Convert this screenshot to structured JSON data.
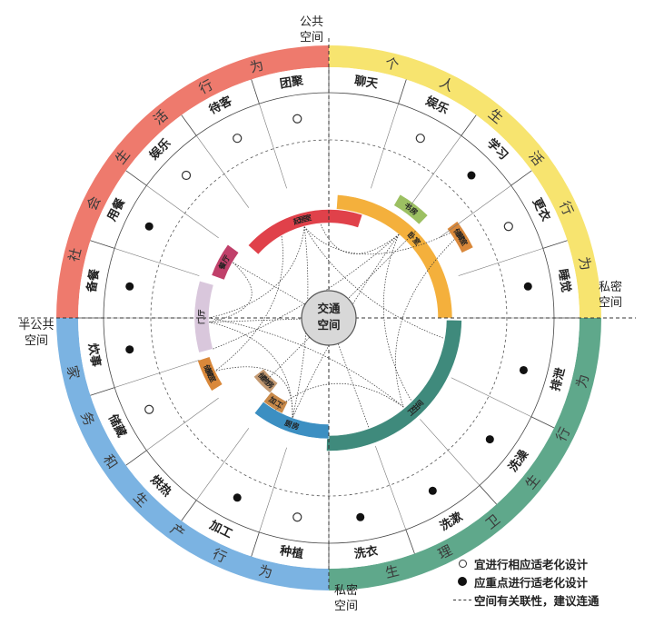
{
  "center_label": "交通空间",
  "axis_labels": {
    "top": "公共空间",
    "right": "私密空间",
    "bottom": "私密空间",
    "left": "半公共空间"
  },
  "categories": [
    {
      "id": "social",
      "label": "社会生活行为",
      "color": "#ee7a6d"
    },
    {
      "id": "personal",
      "label": "个人生活行为",
      "color": "#f7e46f"
    },
    {
      "id": "hygiene",
      "label": "生理卫生行为",
      "color": "#5fa88b"
    },
    {
      "id": "housework",
      "label": "家务和生产行为",
      "color": "#7bb3e2"
    }
  ],
  "activities": [
    {
      "label": "团聚",
      "marker": "open"
    },
    {
      "label": "待客",
      "marker": "open"
    },
    {
      "label": "娱乐",
      "marker": "open"
    },
    {
      "label": "用餐",
      "marker": "filled"
    },
    {
      "label": "备餐",
      "marker": "filled"
    },
    {
      "label": "聊天",
      "marker": "none"
    },
    {
      "label": "娱乐",
      "marker": "open"
    },
    {
      "label": "学习",
      "marker": "filled"
    },
    {
      "label": "更衣",
      "marker": "open"
    },
    {
      "label": "睡觉",
      "marker": "filled"
    },
    {
      "label": "炊事",
      "marker": "filled"
    },
    {
      "label": "储藏",
      "marker": "open"
    },
    {
      "label": "烘热",
      "marker": "none"
    },
    {
      "label": "加工",
      "marker": "filled"
    },
    {
      "label": "种植",
      "marker": "open"
    },
    {
      "label": "洗衣",
      "marker": "filled"
    },
    {
      "label": "洗漱",
      "marker": "filled"
    },
    {
      "label": "洗澡",
      "marker": "filled"
    },
    {
      "label": "排泄",
      "marker": "filled"
    }
  ],
  "rooms": [
    {
      "label": "起居室",
      "color": "#e0414a"
    },
    {
      "label": "卧室",
      "color": "#f4b03c"
    },
    {
      "label": "书房",
      "color": "#9cc062"
    },
    {
      "label": "储藏室",
      "color": "#d9883a"
    },
    {
      "label": "卫生间",
      "color": "#3f8a7c"
    },
    {
      "label": "厨房",
      "color": "#3c8fc2"
    },
    {
      "label": "加工",
      "color": "#c98a4a"
    },
    {
      "label": "储物房",
      "color": "#c49a72"
    },
    {
      "label": "储藏室",
      "color": "#d9883a"
    },
    {
      "label": "门厅",
      "color": "#d9c7dc"
    },
    {
      "label": "餐厅",
      "color": "#c0406a"
    }
  ],
  "legend": [
    {
      "symbol": "open",
      "text": "宜进行相应适老化设计"
    },
    {
      "symbol": "filled",
      "text": "应重点进行适老化设计"
    },
    {
      "symbol": "dash",
      "text": "空间有关联性，建议连通"
    }
  ]
}
